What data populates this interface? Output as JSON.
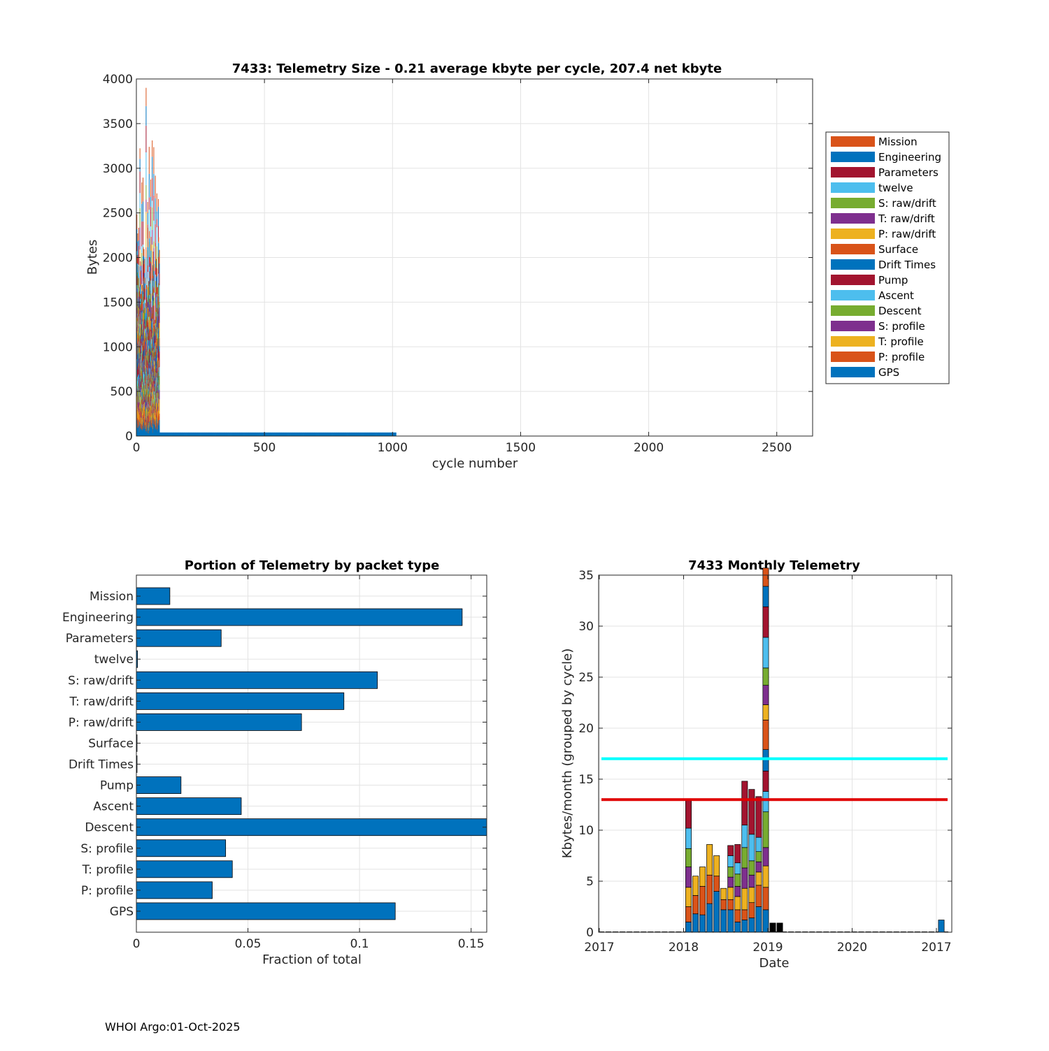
{
  "footer": "WHOI Argo:01-Oct-2025",
  "chart_data": [
    {
      "type": "bar",
      "stacked": true,
      "title": "7433: Telemetry Size - 0.21 average kbyte per cycle,  207.4 net kbyte",
      "xlabel": "cycle number",
      "ylabel": "Bytes",
      "xlim": [
        0,
        2640
      ],
      "ylim": [
        0,
        4000
      ],
      "xticks": [
        0,
        500,
        1000,
        1500,
        2000,
        2500
      ],
      "yticks": [
        0,
        500,
        1000,
        1500,
        2000,
        2500,
        3000,
        3500,
        4000
      ],
      "grid": true,
      "legend_position": "outside-right",
      "legend": [
        "Mission",
        "Engineering",
        "Parameters",
        "twelve",
        "S: raw/drift",
        "T: raw/drift",
        "P: raw/drift",
        "Surface",
        "Drift Times",
        "Pump",
        "Ascent",
        "Descent",
        "S: profile",
        "T: profile",
        "P: profile",
        "GPS"
      ],
      "series_colors": [
        "#D95319",
        "#0072BD",
        "#A2142F",
        "#4DBEEE",
        "#77AC30",
        "#7E2F8E",
        "#EDB120",
        "#D95319",
        "#0072BD",
        "#A2142F",
        "#4DBEEE",
        "#77AC30",
        "#7E2F8E",
        "#EDB120",
        "#D95319",
        "#0072BD"
      ],
      "active_cycles": [
        1,
        90
      ],
      "cycle_totals_sample": [
        1800,
        1700,
        4000,
        2700,
        1900,
        1600,
        2200,
        2000,
        3300,
        3050,
        1800,
        1700
      ],
      "gps_only_cycles": [
        90,
        1010
      ],
      "gps_only_bytes": 40
    },
    {
      "type": "barh",
      "title": "Portion of Telemetry by packet type",
      "xlabel": "Fraction of total",
      "xlim": [
        0,
        0.157
      ],
      "xticks": [
        0,
        0.05,
        0.1,
        0.15
      ],
      "xtick_labels": [
        "0",
        "0.05",
        "0.1",
        "0.15"
      ],
      "categories": [
        "Mission",
        "Engineering",
        "Parameters",
        "twelve",
        "S: raw/drift",
        "T: raw/drift",
        "P: raw/drift",
        "Surface",
        "Drift Times",
        "Pump",
        "Ascent",
        "Descent",
        "S: profile",
        "T: profile",
        "P: profile",
        "GPS"
      ],
      "values": [
        0.015,
        0.146,
        0.038,
        0.0005,
        0.108,
        0.093,
        0.074,
        0.0003,
        0.0003,
        0.02,
        0.047,
        0.157,
        0.04,
        0.043,
        0.034,
        0.116
      ],
      "bar_color": "#0072BD",
      "grid": true
    },
    {
      "type": "bar",
      "stacked": true,
      "title": "7433 Monthly Telemetry",
      "xlabel": "Date",
      "ylabel": "Kbytes/month (grouped by cycle)",
      "ylim": [
        0,
        35
      ],
      "yticks": [
        0,
        5,
        10,
        15,
        20,
        25,
        30,
        35
      ],
      "xtick_labels": [
        "2017",
        "2018",
        "2019",
        "2020",
        "2017"
      ],
      "xtick_month_index": [
        0,
        12,
        24,
        36,
        48
      ],
      "month_count": 50,
      "grid": true,
      "segment_colors": [
        "#0072BD",
        "#D95319",
        "#EDB120",
        "#7E2F8E",
        "#77AC30",
        "#4DBEEE",
        "#A2142F"
      ],
      "months": [
        {
          "m": 12,
          "segments": [
            1.0,
            1.5,
            1.9,
            2.0,
            1.8,
            2.0,
            2.7
          ]
        },
        {
          "m": 13,
          "segments": [
            1.8,
            1.8,
            1.9
          ]
        },
        {
          "m": 14,
          "segments": [
            1.7,
            2.8,
            1.9
          ]
        },
        {
          "m": 15,
          "segments": [
            2.8,
            2.8,
            3.0
          ]
        },
        {
          "m": 16,
          "segments": [
            4.0,
            1.5,
            2.0
          ]
        },
        {
          "m": 17,
          "segments": [
            2.2,
            1.0,
            1.1
          ]
        },
        {
          "m": 18,
          "segments": [
            2.2,
            1.0,
            1.2,
            1.0,
            1.0,
            1.1,
            1.0
          ]
        },
        {
          "m": 19,
          "segments": [
            1.0,
            1.2,
            1.3,
            1.0,
            1.2,
            1.1,
            1.8
          ]
        },
        {
          "m": 20,
          "segments": [
            1.2,
            1.0,
            2.1,
            2.0,
            2.0,
            2.2,
            4.3
          ]
        },
        {
          "m": 21,
          "segments": [
            1.4,
            1.5,
            1.5,
            1.2,
            1.4,
            2.6,
            4.4
          ]
        },
        {
          "m": 22,
          "segments": [
            2.5,
            2.1,
            1.3,
            1.0,
            1.0,
            1.4,
            4.0
          ]
        },
        {
          "m": 23,
          "segments": [
            2.2,
            2.2,
            2.1,
            1.8,
            3.5,
            2.0,
            2.0,
            2.1,
            2.9,
            1.5,
            1.9,
            1.7,
            3.0,
            3.0,
            2.0,
            1.8
          ]
        },
        {
          "m": 24,
          "segments": [
            0.9
          ],
          "color": "#000000"
        },
        {
          "m": 25,
          "segments": [
            0.9
          ],
          "color": "#000000"
        },
        {
          "m": 48,
          "segments": [
            1.2
          ]
        }
      ],
      "hlines": [
        {
          "y": 17,
          "color": "#00FFFF"
        },
        {
          "y": 13,
          "color": "#E00000"
        }
      ]
    }
  ]
}
